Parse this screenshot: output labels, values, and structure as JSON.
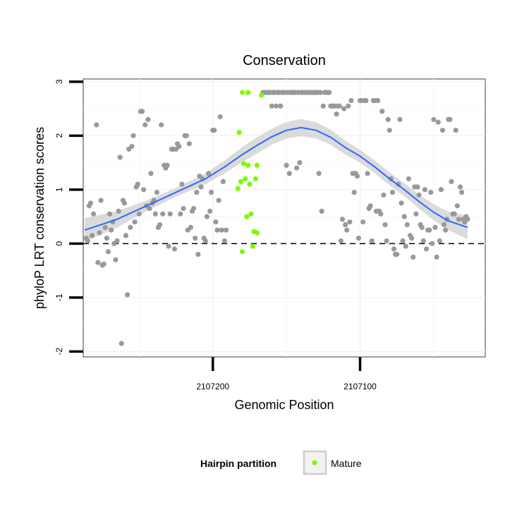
{
  "chart_data": {
    "type": "scatter",
    "title": "Conservation",
    "xlabel": "Genomic Position",
    "ylabel": "phyloP LRT conservation scores",
    "x_reversed": true,
    "xlim": [
      2107288,
      2107015
    ],
    "ylim": [
      -2.1,
      3.05
    ],
    "x_ticks": [
      2107200,
      2107100
    ],
    "y_ticks": [
      -2,
      -1,
      0,
      1,
      2,
      3
    ],
    "grid": true,
    "reference_line": {
      "y": 0,
      "style": "dashed"
    },
    "colors": {
      "gray_points": "#999999",
      "mature_points": "#7cfc00",
      "smooth_line": "#3366ff",
      "ribbon": "#cfcfcf"
    },
    "legend": {
      "title": "Hairpin partition",
      "position": "bottom",
      "entries": [
        {
          "label": "Mature",
          "color": "#7cfc00"
        }
      ]
    },
    "series": [
      {
        "name": "Mature",
        "color": "#7cfc00",
        "points": [
          [
            2107180,
            2.8
          ],
          [
            2107176,
            2.8
          ],
          [
            2107167,
            2.75
          ],
          [
            2107182,
            2.06
          ],
          [
            2107179,
            1.48
          ],
          [
            2107176,
            1.45
          ],
          [
            2107170,
            1.45
          ],
          [
            2107178,
            1.2
          ],
          [
            2107181,
            1.15
          ],
          [
            2107175,
            1.1
          ],
          [
            2107171,
            1.2
          ],
          [
            2107183,
            1.02
          ],
          [
            2107177,
            0.5
          ],
          [
            2107174,
            0.55
          ],
          [
            2107172,
            0.22
          ],
          [
            2107170,
            0.2
          ],
          [
            2107180,
            -0.15
          ],
          [
            2107173,
            -0.05
          ]
        ]
      },
      {
        "name": "",
        "color": "#999999",
        "points": [
          [
            2107286,
            0.1
          ],
          [
            2107285,
            0.05
          ],
          [
            2107284,
            0.7
          ],
          [
            2107283,
            0.75
          ],
          [
            2107282,
            0.15
          ],
          [
            2107281,
            0.55
          ],
          [
            2107279,
            2.2
          ],
          [
            2107278,
            -0.35
          ],
          [
            2107277,
            0.2
          ],
          [
            2107276,
            0.8
          ],
          [
            2107275,
            -0.4
          ],
          [
            2107274,
            -0.38
          ],
          [
            2107273,
            0.3
          ],
          [
            2107272,
            0.1
          ],
          [
            2107271,
            -0.15
          ],
          [
            2107270,
            0.55
          ],
          [
            2107269,
            0.25
          ],
          [
            2107268,
            0.4
          ],
          [
            2107267,
            0.0
          ],
          [
            2107266,
            -0.3
          ],
          [
            2107265,
            0.05
          ],
          [
            2107264,
            0.6
          ],
          [
            2107263,
            1.6
          ],
          [
            2107262,
            -1.85
          ],
          [
            2107261,
            0.8
          ],
          [
            2107260,
            0.75
          ],
          [
            2107259,
            0.15
          ],
          [
            2107258,
            -0.95
          ],
          [
            2107257,
            1.75
          ],
          [
            2107256,
            0.3
          ],
          [
            2107255,
            1.8
          ],
          [
            2107254,
            2.0
          ],
          [
            2107253,
            0.4
          ],
          [
            2107252,
            1.05
          ],
          [
            2107251,
            1.1
          ],
          [
            2107250,
            0.55
          ],
          [
            2107249,
            2.45
          ],
          [
            2107248,
            2.45
          ],
          [
            2107247,
            1.0
          ],
          [
            2107246,
            2.2
          ],
          [
            2107245,
            0.7
          ],
          [
            2107244,
            2.3
          ],
          [
            2107243,
            0.65
          ],
          [
            2107242,
            1.3
          ],
          [
            2107241,
            0.75
          ],
          [
            2107240,
            0.8
          ],
          [
            2107239,
            0.55
          ],
          [
            2107238,
            0.95
          ],
          [
            2107237,
            0.3
          ],
          [
            2107236,
            0.35
          ],
          [
            2107235,
            2.2
          ],
          [
            2107234,
            0.55
          ],
          [
            2107233,
            1.45
          ],
          [
            2107232,
            1.4
          ],
          [
            2107231,
            1.45
          ],
          [
            2107230,
            -0.05
          ],
          [
            2107229,
            0.55
          ],
          [
            2107228,
            1.75
          ],
          [
            2107227,
            1.75
          ],
          [
            2107226,
            -0.1
          ],
          [
            2107225,
            1.75
          ],
          [
            2107224,
            1.85
          ],
          [
            2107223,
            1.8
          ],
          [
            2107222,
            0.55
          ],
          [
            2107221,
            1.1
          ],
          [
            2107220,
            0.65
          ],
          [
            2107219,
            2.0
          ],
          [
            2107218,
            2.0
          ],
          [
            2107217,
            0.25
          ],
          [
            2107216,
            1.85
          ],
          [
            2107215,
            0.3
          ],
          [
            2107214,
            0.6
          ],
          [
            2107213,
            0.65
          ],
          [
            2107212,
            0.1
          ],
          [
            2107211,
            0.95
          ],
          [
            2107210,
            -0.2
          ],
          [
            2107209,
            1.25
          ],
          [
            2107208,
            1.05
          ],
          [
            2107207,
            1.2
          ],
          [
            2107206,
            0.1
          ],
          [
            2107205,
            0.05
          ],
          [
            2107204,
            0.5
          ],
          [
            2107203,
            1.3
          ],
          [
            2107202,
            0.6
          ],
          [
            2107201,
            0.95
          ],
          [
            2107200,
            2.1
          ],
          [
            2107199,
            2.1
          ],
          [
            2107198,
            0.4
          ],
          [
            2107197,
            0.25
          ],
          [
            2107196,
            0.8
          ],
          [
            2107195,
            2.35
          ],
          [
            2107194,
            0.25
          ],
          [
            2107193,
            1.15
          ],
          [
            2107192,
            0.05
          ],
          [
            2107191,
            0.25
          ],
          [
            2107166,
            2.8
          ],
          [
            2107165,
            2.8
          ],
          [
            2107164,
            2.8
          ],
          [
            2107163,
            2.8
          ],
          [
            2107162,
            2.8
          ],
          [
            2107161,
            2.8
          ],
          [
            2107160,
            2.55
          ],
          [
            2107159,
            2.8
          ],
          [
            2107158,
            2.8
          ],
          [
            2107157,
            2.55
          ],
          [
            2107156,
            2.8
          ],
          [
            2107155,
            2.8
          ],
          [
            2107154,
            2.55
          ],
          [
            2107153,
            2.8
          ],
          [
            2107152,
            2.8
          ],
          [
            2107151,
            2.8
          ],
          [
            2107150,
            1.45
          ],
          [
            2107149,
            2.8
          ],
          [
            2107148,
            1.3
          ],
          [
            2107147,
            2.8
          ],
          [
            2107146,
            2.8
          ],
          [
            2107145,
            2.8
          ],
          [
            2107144,
            2.8
          ],
          [
            2107143,
            1.4
          ],
          [
            2107142,
            2.8
          ],
          [
            2107141,
            1.5
          ],
          [
            2107140,
            2.8
          ],
          [
            2107139,
            2.8
          ],
          [
            2107138,
            2.8
          ],
          [
            2107137,
            2.8
          ],
          [
            2107136,
            2.8
          ],
          [
            2107135,
            2.8
          ],
          [
            2107134,
            2.8
          ],
          [
            2107133,
            2.8
          ],
          [
            2107132,
            2.8
          ],
          [
            2107131,
            2.8
          ],
          [
            2107130,
            2.8
          ],
          [
            2107129,
            2.8
          ],
          [
            2107128,
            1.3
          ],
          [
            2107127,
            2.8
          ],
          [
            2107126,
            0.6
          ],
          [
            2107125,
            2.55
          ],
          [
            2107124,
            2.8
          ],
          [
            2107123,
            2.8
          ],
          [
            2107122,
            2.8
          ],
          [
            2107121,
            2.8
          ],
          [
            2107120,
            2.55
          ],
          [
            2107119,
            2.55
          ],
          [
            2107118,
            2.55
          ],
          [
            2107117,
            2.55
          ],
          [
            2107116,
            2.4
          ],
          [
            2107115,
            2.55
          ],
          [
            2107114,
            2.55
          ],
          [
            2107113,
            0.05
          ],
          [
            2107112,
            0.45
          ],
          [
            2107111,
            2.5
          ],
          [
            2107110,
            0.35
          ],
          [
            2107109,
            0.25
          ],
          [
            2107108,
            2.55
          ],
          [
            2107107,
            0.4
          ],
          [
            2107106,
            2.65
          ],
          [
            2107105,
            1.3
          ],
          [
            2107104,
            0.95
          ],
          [
            2107103,
            1.3
          ],
          [
            2107102,
            1.25
          ],
          [
            2107101,
            0.1
          ],
          [
            2107100,
            2.65
          ],
          [
            2107099,
            2.65
          ],
          [
            2107098,
            0.4
          ],
          [
            2107097,
            2.65
          ],
          [
            2107096,
            2.65
          ],
          [
            2107095,
            1.3
          ],
          [
            2107094,
            0.65
          ],
          [
            2107093,
            0.7
          ],
          [
            2107092,
            0.05
          ],
          [
            2107091,
            2.65
          ],
          [
            2107090,
            2.65
          ],
          [
            2107089,
            0.6
          ],
          [
            2107088,
            2.65
          ],
          [
            2107087,
            0.6
          ],
          [
            2107086,
            0.55
          ],
          [
            2107085,
            2.45
          ],
          [
            2107084,
            0.9
          ],
          [
            2107083,
            0.35
          ],
          [
            2107082,
            0.05
          ],
          [
            2107081,
            2.3
          ],
          [
            2107080,
            2.1
          ],
          [
            2107079,
            1.2
          ],
          [
            2107078,
            0.95
          ],
          [
            2107077,
            -0.1
          ],
          [
            2107076,
            -0.2
          ],
          [
            2107075,
            -0.2
          ],
          [
            2107074,
            1.1
          ],
          [
            2107073,
            2.3
          ],
          [
            2107072,
            0.75
          ],
          [
            2107071,
            0.05
          ],
          [
            2107070,
            0.5
          ],
          [
            2107069,
            -0.05
          ],
          [
            2107068,
            0.35
          ],
          [
            2107067,
            1.2
          ],
          [
            2107066,
            0.15
          ],
          [
            2107065,
            0.1
          ],
          [
            2107064,
            -0.25
          ],
          [
            2107063,
            1.05
          ],
          [
            2107062,
            0.55
          ],
          [
            2107061,
            1.05
          ],
          [
            2107060,
            0.9
          ],
          [
            2107059,
            0.35
          ],
          [
            2107058,
            0.3
          ],
          [
            2107057,
            0.05
          ],
          [
            2107056,
            1.0
          ],
          [
            2107055,
            -0.1
          ],
          [
            2107054,
            0.25
          ],
          [
            2107053,
            0.25
          ],
          [
            2107052,
            0.95
          ],
          [
            2107051,
            0.0
          ],
          [
            2107050,
            2.3
          ],
          [
            2107049,
            0.3
          ],
          [
            2107048,
            -0.25
          ],
          [
            2107047,
            2.25
          ],
          [
            2107046,
            0.05
          ],
          [
            2107045,
            1.0
          ],
          [
            2107044,
            2.1
          ],
          [
            2107043,
            0.35
          ],
          [
            2107042,
            0.25
          ],
          [
            2107041,
            0.45
          ],
          [
            2107040,
            2.3
          ],
          [
            2107039,
            2.3
          ],
          [
            2107038,
            1.15
          ],
          [
            2107037,
            0.55
          ],
          [
            2107036,
            0.55
          ],
          [
            2107035,
            2.1
          ],
          [
            2107034,
            0.7
          ],
          [
            2107033,
            0.45
          ],
          [
            2107032,
            1.05
          ],
          [
            2107031,
            0.95
          ],
          [
            2107030,
            0.45
          ],
          [
            2107029,
            0.4
          ],
          [
            2107028,
            0.5
          ],
          [
            2107027,
            0.45
          ]
        ]
      }
    ],
    "smooth": {
      "color": "#3366ff",
      "points": [
        [
          2107287,
          0.25
        ],
        [
          2107265,
          0.45
        ],
        [
          2107245,
          0.7
        ],
        [
          2107225,
          0.95
        ],
        [
          2107205,
          1.2
        ],
        [
          2107192,
          1.42
        ],
        [
          2107180,
          1.65
        ],
        [
          2107170,
          1.82
        ],
        [
          2107160,
          1.98
        ],
        [
          2107150,
          2.1
        ],
        [
          2107140,
          2.15
        ],
        [
          2107130,
          2.1
        ],
        [
          2107120,
          1.97
        ],
        [
          2107110,
          1.78
        ],
        [
          2107100,
          1.62
        ],
        [
          2107090,
          1.42
        ],
        [
          2107080,
          1.2
        ],
        [
          2107070,
          1.0
        ],
        [
          2107060,
          0.78
        ],
        [
          2107050,
          0.58
        ],
        [
          2107040,
          0.42
        ],
        [
          2107027,
          0.3
        ]
      ],
      "ribbon_halfwidth": [
        0.22,
        0.15,
        0.1,
        0.08,
        0.1,
        0.12,
        0.14,
        0.15,
        0.15,
        0.15,
        0.16,
        0.15,
        0.14,
        0.13,
        0.12,
        0.12,
        0.12,
        0.12,
        0.13,
        0.15,
        0.17,
        0.22
      ]
    }
  }
}
